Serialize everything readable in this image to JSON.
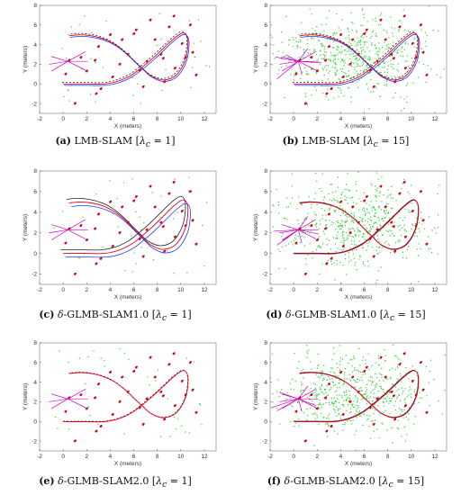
{
  "chart_data": [
    {
      "type": "line",
      "panel_id": "a",
      "caption": {
        "tag": "(a)",
        "pre": "",
        "name": "LMB-SLAM",
        "lambda": "1"
      },
      "xlabel": "X (meters)",
      "ylabel": "Y (meters)",
      "xlim": [
        -2,
        13
      ],
      "ylim": [
        -3,
        8
      ],
      "xticks": [
        -2,
        0,
        2,
        4,
        6,
        8,
        10,
        12
      ],
      "yticks": [
        -2,
        0,
        2,
        4,
        6,
        8
      ],
      "clutter_rate": 1,
      "spread": 0.15,
      "series": [
        {
          "color": "#222222",
          "dash": "2,2"
        },
        {
          "color": "#e8001c",
          "dash": ""
        },
        {
          "color": "#1f3cff",
          "dash": ""
        }
      ]
    },
    {
      "type": "line",
      "panel_id": "b",
      "caption": {
        "tag": "(b)",
        "pre": "",
        "name": "LMB-SLAM",
        "lambda": "15"
      },
      "xlabel": "X (meters)",
      "ylabel": "Y (meters)",
      "xlim": [
        -2,
        13
      ],
      "ylim": [
        -3,
        8
      ],
      "xticks": [
        -2,
        0,
        2,
        4,
        6,
        8,
        10,
        12
      ],
      "yticks": [
        -2,
        0,
        2,
        4,
        6,
        8
      ],
      "clutter_rate": 15,
      "spread": 0.15,
      "series": [
        {
          "color": "#222222",
          "dash": "2,2"
        },
        {
          "color": "#e8001c",
          "dash": ""
        },
        {
          "color": "#1f3cff",
          "dash": ""
        }
      ]
    },
    {
      "type": "line",
      "panel_id": "c",
      "caption": {
        "tag": "(c)",
        "pre": "δ",
        "name": "-GLMB-SLAM1.0",
        "lambda": "1"
      },
      "xlabel": "X (meters)",
      "ylabel": "Y (meters)",
      "xlim": [
        -2,
        13
      ],
      "ylim": [
        -3,
        8
      ],
      "xticks": [
        -2,
        0,
        2,
        4,
        6,
        8,
        10,
        12
      ],
      "yticks": [
        -2,
        0,
        2,
        4,
        6,
        8
      ],
      "clutter_rate": 1,
      "spread": 0.35,
      "series": [
        {
          "color": "#222222",
          "dash": ""
        },
        {
          "color": "#e8001c",
          "dash": ""
        },
        {
          "color": "#1f3cff",
          "dash": ""
        }
      ]
    },
    {
      "type": "line",
      "panel_id": "d",
      "caption": {
        "tag": "(d)",
        "pre": "δ",
        "name": "-GLMB-SLAM1.0",
        "lambda": "15"
      },
      "xlabel": "X (meters)",
      "ylabel": "Y (meters)",
      "xlim": [
        -2,
        13
      ],
      "ylim": [
        -3,
        8
      ],
      "xticks": [
        -2,
        0,
        2,
        4,
        6,
        8,
        10,
        12
      ],
      "yticks": [
        -2,
        0,
        2,
        4,
        6,
        8
      ],
      "clutter_rate": 15,
      "spread": 0.05,
      "series": [
        {
          "color": "#222222",
          "dash": ""
        },
        {
          "color": "#e8001c",
          "dash": ""
        }
      ]
    },
    {
      "type": "line",
      "panel_id": "e",
      "caption": {
        "tag": "(e)",
        "pre": "δ",
        "name": "-GLMB-SLAM2.0",
        "lambda": "1"
      },
      "xlabel": "X (meters)",
      "ylabel": "Y (meters)",
      "xlim": [
        -2,
        13
      ],
      "ylim": [
        -3,
        8
      ],
      "xticks": [
        -2,
        0,
        2,
        4,
        6,
        8,
        10,
        12
      ],
      "yticks": [
        -2,
        0,
        2,
        4,
        6,
        8
      ],
      "clutter_rate": 1,
      "spread": 0.05,
      "series": [
        {
          "color": "#222222",
          "dash": "2,2"
        },
        {
          "color": "#e8001c",
          "dash": ""
        }
      ]
    },
    {
      "type": "line",
      "panel_id": "f",
      "caption": {
        "tag": "(f)",
        "pre": "δ",
        "name": "-GLMB-SLAM2.0",
        "lambda": "15"
      },
      "xlabel": "X (meters)",
      "ylabel": "Y (meters)",
      "xlim": [
        -2,
        13
      ],
      "ylim": [
        -3,
        8
      ],
      "xticks": [
        -2,
        0,
        2,
        4,
        6,
        8,
        10,
        12
      ],
      "yticks": [
        -2,
        0,
        2,
        4,
        6,
        8
      ],
      "clutter_rate": 15,
      "spread": 0.05,
      "series": [
        {
          "color": "#222222",
          "dash": ""
        },
        {
          "color": "#e8001c",
          "dash": ""
        }
      ]
    }
  ],
  "trajectory": {
    "x": [
      0,
      2,
      3.5,
      4.7,
      5.8,
      6.7,
      7.6,
      8.5,
      9.4,
      10.2,
      10.6,
      10.4,
      9.6,
      8.5,
      7.5,
      6.8,
      6.0,
      5.2,
      4.3,
      3.4,
      2.4,
      1.4,
      0.5
    ],
    "y": [
      0,
      0,
      0,
      0.3,
      0.9,
      1.7,
      2.6,
      3.6,
      4.6,
      5.2,
      4.5,
      2.5,
      0.9,
      0.4,
      0.8,
      1.5,
      2.4,
      3.3,
      4.1,
      4.6,
      4.9,
      5.0,
      4.9
    ]
  },
  "landmarks": {
    "x": [
      0.5,
      1.5,
      2.0,
      2.7,
      3.2,
      4.2,
      4.8,
      5.5,
      6.0,
      6.2,
      6.5,
      7.1,
      7.4,
      7.8,
      8.3,
      8.5,
      9.0,
      9.4,
      9.5,
      10.1,
      10.4,
      11.0,
      11.3,
      5.0,
      3.0,
      2.8,
      4.0,
      6.8,
      8.6,
      10.8,
      1.0,
      0.2
    ],
    "y": [
      2.4,
      2.7,
      1.3,
      2.4,
      -0.5,
      0.7,
      2.0,
      3.0,
      5.1,
      5.5,
      1.4,
      2.3,
      6.5,
      4.5,
      3.0,
      2.6,
      5.8,
      6.9,
      1.6,
      4.1,
      2.7,
      3.2,
      0.9,
      4.5,
      3.8,
      -1.0,
      5.0,
      -0.3,
      0.2,
      6.0,
      -2.0,
      1.0
    ]
  },
  "rays": {
    "origin": [
      0.4,
      2.3
    ],
    "tips": [
      [
        -1.0,
        1.3
      ],
      [
        -1.2,
        2.0
      ],
      [
        -1.0,
        2.8
      ],
      [
        1.9,
        1.4
      ],
      [
        2.1,
        2.3
      ],
      [
        1.9,
        3.3
      ],
      [
        1.2,
        3.6
      ],
      [
        0.7,
        1.0
      ]
    ]
  }
}
